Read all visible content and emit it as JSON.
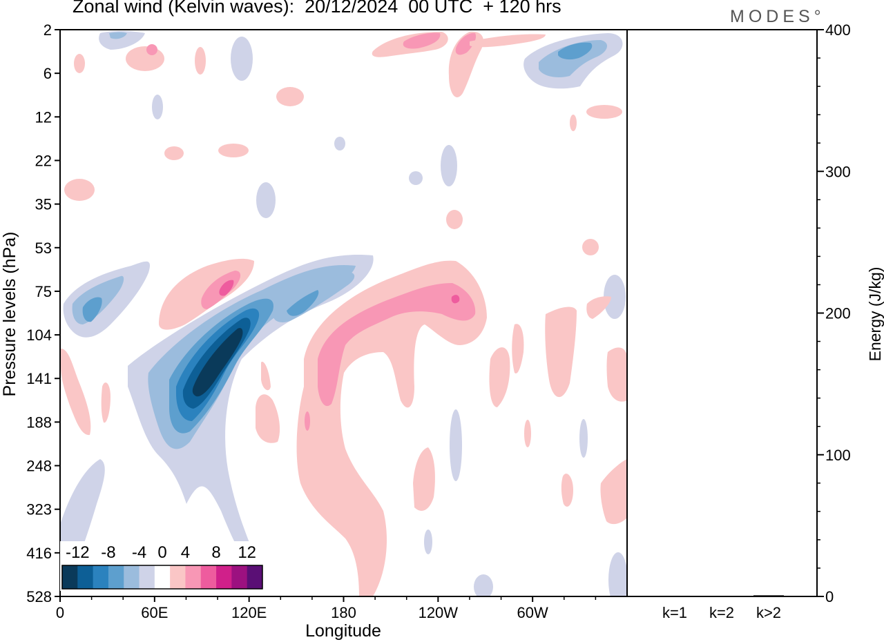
{
  "header": {
    "title": "Zonal wind (Kelvin waves):  20/12/2024  00 UTC  + 120 hrs",
    "logo": "MODES°"
  },
  "chart_data": [
    {
      "type": "heatmap",
      "title": "Zonal wind (Kelvin waves):  20/12/2024  00 UTC  + 120 hrs",
      "xlabel": "Longitude",
      "ylabel": "Pressure levels (hPa)",
      "x_ticks": [
        "0",
        "60E",
        "120E",
        "180",
        "120W",
        "60W"
      ],
      "x_tick_degrees": [
        0,
        60,
        120,
        180,
        240,
        300
      ],
      "xlim": [
        0,
        360
      ],
      "y_ticks": [
        "2",
        "6",
        "12",
        "22",
        "35",
        "53",
        "75",
        "104",
        "141",
        "188",
        "248",
        "323",
        "416",
        "528"
      ],
      "y_scale": "log-pressure (inverted, top = 2 hPa)",
      "colorbar": {
        "labels": [
          "-12",
          "-8",
          "-4",
          "0",
          "4",
          "8",
          "12"
        ],
        "levels": [
          -14,
          -12,
          -10,
          -8,
          -6,
          -4,
          -2,
          2,
          4,
          6,
          8,
          10,
          12,
          14
        ],
        "colors": [
          "#0a3a5a",
          "#0d5f96",
          "#2b82be",
          "#5d9fce",
          "#9bbcdd",
          "#cfd3e8",
          "#ffffff",
          "#fac6c6",
          "#f897b5",
          "#ee5c9e",
          "#d0208a",
          "#9c1180",
          "#5a0f75"
        ]
      },
      "features": [
        {
          "kind": "negative",
          "lon_deg": 85,
          "pressure_hPa": 125,
          "min_value": -14
        },
        {
          "kind": "negative",
          "lon_deg": 13,
          "pressure_hPa": 90,
          "min_value": -6
        },
        {
          "kind": "negative",
          "lon_deg": 150,
          "pressure_hPa": 85,
          "min_value": -6
        },
        {
          "kind": "negative",
          "lon_deg": 320,
          "pressure_hPa": 4,
          "min_value": -6
        },
        {
          "kind": "positive",
          "lon_deg": 210,
          "pressure_hPa": 110,
          "max_value": 6
        },
        {
          "kind": "positive",
          "lon_deg": 238,
          "pressure_hPa": 85,
          "max_value": 8
        },
        {
          "kind": "positive",
          "lon_deg": 105,
          "pressure_hPa": 75,
          "max_value": 8
        },
        {
          "kind": "positive",
          "lon_deg": 235,
          "pressure_hPa": 3,
          "max_value": 6
        },
        {
          "kind": "positive",
          "lon_deg": 200,
          "pressure_hPa": 350,
          "max_value": 4
        }
      ]
    },
    {
      "type": "bar",
      "ylabel": "Energy (J/kg)",
      "ylim": [
        0,
        400
      ],
      "y_ticks": [
        0,
        100,
        200,
        300,
        400
      ],
      "categories": [
        "k=1",
        "k=2",
        "k>2"
      ],
      "values": [
        0.5,
        0.3,
        0.8
      ]
    }
  ]
}
